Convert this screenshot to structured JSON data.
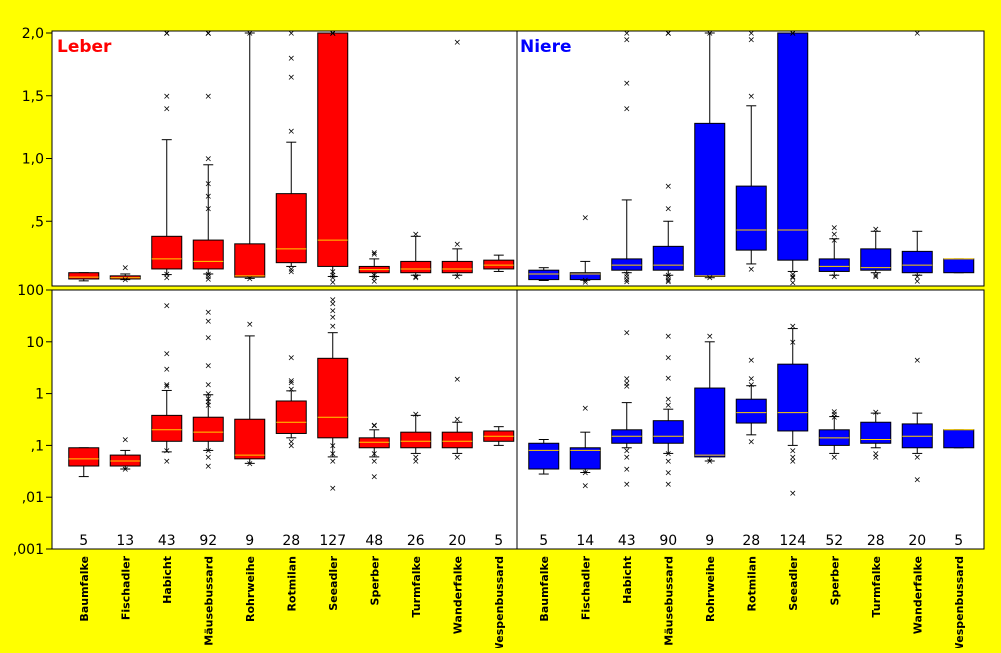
{
  "chart_data": {
    "type": "box",
    "panel_titles": {
      "leber": "Leber",
      "niere": "Niere"
    },
    "categories": [
      "Baumfalke",
      "Fischadler",
      "Habicht",
      "Mäusebussard",
      "Rohrweihe",
      "Rotmilan",
      "Seeadler",
      "Sperber",
      "Turmfalke",
      "Wanderfalke",
      "Wespenbussard"
    ],
    "top_axis": {
      "scale": "linear",
      "ylim": [
        0.02,
        2.0
      ],
      "tick_labels": [
        "2,0",
        "1,5",
        "1,0",
        ",5"
      ],
      "tick_values": [
        2.0,
        1.5,
        1.0,
        0.5
      ]
    },
    "bottom_axis": {
      "scale": "log",
      "ylim": [
        0.001,
        100
      ],
      "tick_labels": [
        "100",
        "10",
        "1",
        ",1",
        ",01",
        ",001"
      ],
      "tick_values": [
        100,
        10,
        1,
        0.1,
        0.01,
        0.001
      ]
    },
    "series": [
      {
        "name": "Leber",
        "color": "#ff0000",
        "counts": [
          "5",
          "13",
          "43",
          "92",
          "9",
          "28",
          "127",
          "48",
          "26",
          "20",
          "5"
        ],
        "boxes": [
          {
            "min": 0.025,
            "q1": 0.04,
            "median": 0.055,
            "q3": 0.09,
            "max": 0.09,
            "outliers": []
          },
          {
            "min": 0.035,
            "q1": 0.04,
            "median": 0.05,
            "q3": 0.065,
            "max": 0.08,
            "outliers": [
              0.035,
              0.13
            ]
          },
          {
            "min": 0.075,
            "q1": 0.12,
            "median": 0.2,
            "q3": 0.38,
            "max": 1.15,
            "outliers": [
              1.4,
              6,
              3,
              50,
              0.05,
              0.08,
              1.5
            ]
          },
          {
            "min": 0.08,
            "q1": 0.12,
            "median": 0.18,
            "q3": 0.35,
            "max": 0.95,
            "outliers": [
              1.5,
              1.0,
              0.8,
              0.7,
              0.6,
              3.5,
              12,
              25,
              38,
              0.04,
              0.06,
              0.08
            ]
          },
          {
            "min": 0.045,
            "q1": 0.055,
            "median": 0.065,
            "q3": 0.32,
            "max": 13,
            "outliers": [
              0.045,
              22
            ]
          },
          {
            "min": 0.14,
            "q1": 0.17,
            "median": 0.28,
            "q3": 0.72,
            "max": 1.13,
            "outliers": [
              1.22,
              1.65,
              5,
              1.8,
              0.1,
              0.12
            ]
          },
          {
            "min": 0.06,
            "q1": 0.14,
            "median": 0.35,
            "q3": 4.8,
            "max": 15,
            "outliers": [
              20,
              30,
              40,
              55,
              65,
              0.05,
              0.07,
              0.1,
              0.015
            ]
          },
          {
            "min": 0.06,
            "q1": 0.09,
            "median": 0.115,
            "q3": 0.14,
            "max": 0.2,
            "outliers": [
              0.25,
              0.24,
              0.05,
              0.025,
              0.07
            ]
          },
          {
            "min": 0.07,
            "q1": 0.09,
            "median": 0.12,
            "q3": 0.18,
            "max": 0.38,
            "outliers": [
              0.4,
              0.05,
              0.06
            ]
          },
          {
            "min": 0.07,
            "q1": 0.09,
            "median": 0.12,
            "q3": 0.18,
            "max": 0.28,
            "outliers": [
              0.32,
              1.93,
              0.06
            ]
          },
          {
            "min": 0.1,
            "q1": 0.12,
            "median": 0.15,
            "q3": 0.19,
            "max": 0.23,
            "outliers": []
          }
        ]
      },
      {
        "name": "Niere",
        "color": "#0000ff",
        "counts": [
          "5",
          "14",
          "43",
          "90",
          "9",
          "28",
          "124",
          "52",
          "28",
          "20",
          "5"
        ],
        "boxes": [
          {
            "min": 0.028,
            "q1": 0.035,
            "median": 0.08,
            "q3": 0.11,
            "max": 0.13,
            "outliers": []
          },
          {
            "min": 0.03,
            "q1": 0.035,
            "median": 0.08,
            "q3": 0.09,
            "max": 0.18,
            "outliers": [
              0.53,
              0.017,
              0.03
            ]
          },
          {
            "min": 0.09,
            "q1": 0.11,
            "median": 0.15,
            "q3": 0.2,
            "max": 0.67,
            "outliers": [
              1.4,
              1.6,
              1.95,
              15,
              0.08,
              0.06,
              0.035,
              0.018
            ]
          },
          {
            "min": 0.07,
            "q1": 0.11,
            "median": 0.15,
            "q3": 0.3,
            "max": 0.5,
            "outliers": [
              0.6,
              0.78,
              2.0,
              5,
              13,
              0.05,
              0.07,
              0.03,
              0.018
            ]
          },
          {
            "min": 0.05,
            "q1": 0.06,
            "median": 0.065,
            "q3": 1.28,
            "max": 10,
            "outliers": [
              0.05,
              13
            ]
          },
          {
            "min": 0.16,
            "q1": 0.27,
            "median": 0.43,
            "q3": 0.78,
            "max": 1.42,
            "outliers": [
              1.5,
              1.95,
              4.5,
              0.12
            ]
          },
          {
            "min": 0.1,
            "q1": 0.19,
            "median": 0.43,
            "q3": 3.7,
            "max": 18,
            "outliers": [
              20,
              10,
              0.06,
              0.08,
              0.05,
              0.012
            ]
          },
          {
            "min": 0.07,
            "q1": 0.1,
            "median": 0.14,
            "q3": 0.2,
            "max": 0.36,
            "outliers": [
              0.45,
              0.4,
              0.35,
              0.06
            ]
          },
          {
            "min": 0.09,
            "q1": 0.11,
            "median": 0.13,
            "q3": 0.28,
            "max": 0.42,
            "outliers": [
              0.44,
              0.06,
              0.07
            ]
          },
          {
            "min": 0.07,
            "q1": 0.09,
            "median": 0.15,
            "q3": 0.26,
            "max": 0.42,
            "outliers": [
              4.5,
              0.06,
              0.022
            ]
          },
          {
            "min": 0.09,
            "q1": 0.09,
            "median": 0.2,
            "q3": 0.2,
            "max": 0.2,
            "outliers": []
          }
        ]
      }
    ],
    "grid": false,
    "legend": "none"
  }
}
